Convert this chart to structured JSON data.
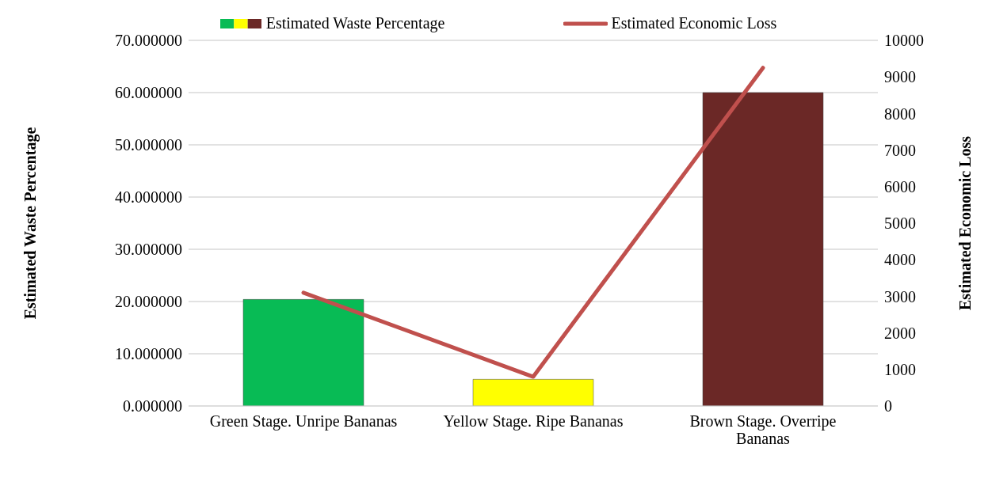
{
  "chart_data": {
    "type": "bar",
    "categories": [
      "Green Stage. Unripe Bananas",
      "Yellow Stage. Ripe Bananas",
      "Brown Stage. Overripe Bananas"
    ],
    "series": [
      {
        "name": "Estimated Waste Percentage",
        "colors": [
          "#08bb55",
          "#ffff00",
          "#6b2826"
        ],
        "values": [
          20.4,
          5.1,
          60
        ]
      },
      {
        "name": "Estimated Economic Loss",
        "type": "line",
        "axis": "y2",
        "color": "#c0504d",
        "values": [
          3100,
          800,
          9250
        ]
      }
    ],
    "ylabel": "Estimated Waste Percentage",
    "y2label": "Estimated Economic Loss",
    "ylim": [
      0,
      70
    ],
    "yticks": [
      {
        "value": 0,
        "label": "0.000000"
      },
      {
        "value": 10,
        "label": "10.000000"
      },
      {
        "value": 20,
        "label": "20.000000"
      },
      {
        "value": 30,
        "label": "30.000000"
      },
      {
        "value": 40,
        "label": "40.000000"
      },
      {
        "value": 50,
        "label": "50.000000"
      },
      {
        "value": 60,
        "label": "60.000000"
      },
      {
        "value": 70,
        "label": "70.000000"
      }
    ],
    "y2lim": [
      0,
      10000
    ],
    "y2ticks": [
      0,
      1000,
      2000,
      3000,
      4000,
      5000,
      6000,
      7000,
      8000,
      9000,
      10000
    ],
    "grid": "y",
    "legend": "top",
    "marker": "none"
  }
}
